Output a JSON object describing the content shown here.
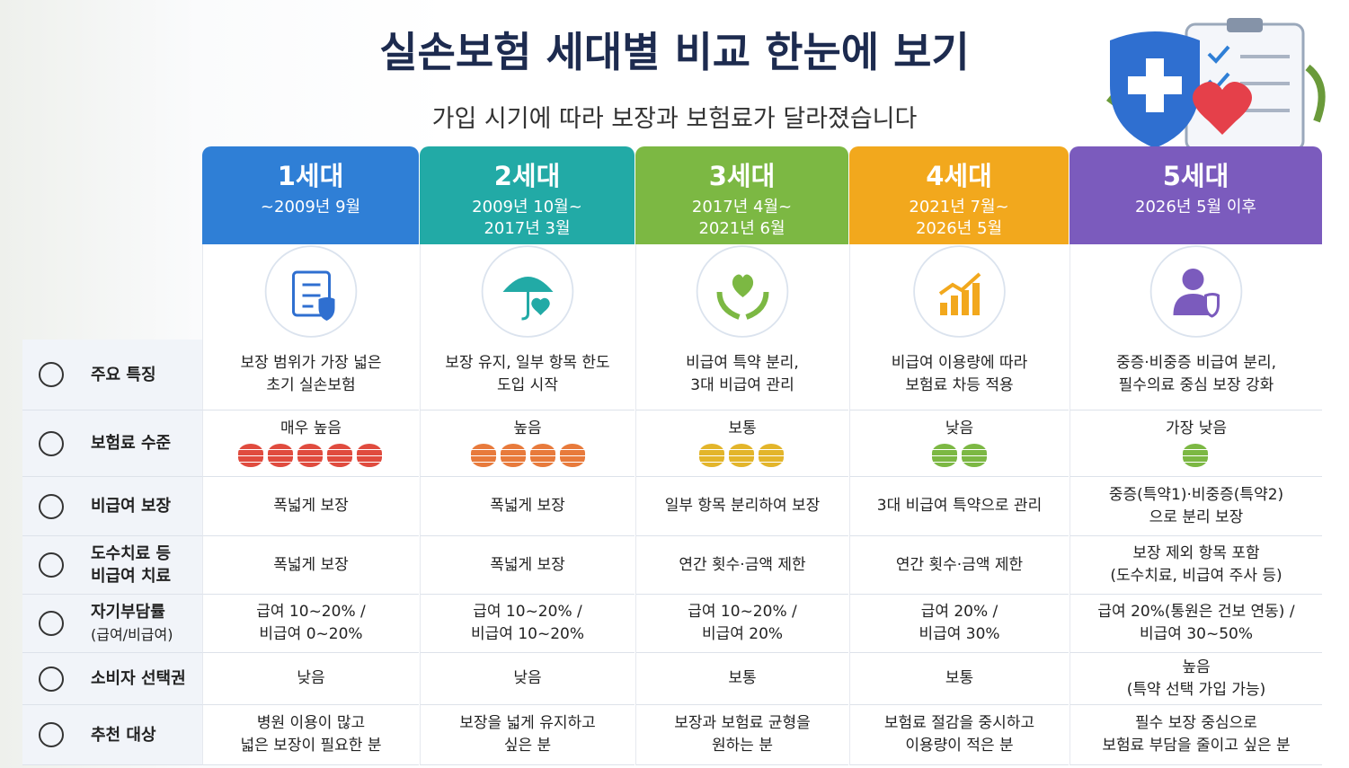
{
  "header": {
    "title": "실손보험 세대별 비교 한눈에 보기",
    "subtitle": "가입 시기에 따라 보장과 보험료가 달라졌습니다"
  },
  "columns": [
    {
      "name": "1세대",
      "period": "~2009년 9월"
    },
    {
      "name": "2세대",
      "period": "2009년 10월~\n2017년 3월"
    },
    {
      "name": "3세대",
      "period": "2017년 4월~\n2021년 6월"
    },
    {
      "name": "4세대",
      "period": "2021년 7월~\n2026년 5월"
    },
    {
      "name": "5세대",
      "period": "2026년 5월 이후"
    }
  ],
  "rows": [
    {
      "label": "주요 특징",
      "cells": [
        "보장 범위가 가장 넓은\n초기 실손보험",
        "보장 유지, 일부 항목 한도\n도입 시작",
        "비급여 특약 분리,\n3대 비급여 관리",
        "비급여 이용량에 따라\n보험료 차등 적용",
        "중증·비중증 비급여 분리,\n필수의료 중심 보장 강화"
      ]
    },
    {
      "label": "보험료 수준",
      "cells": [
        "매우 높음",
        "높음",
        "보통",
        "낮음",
        "가장 낮음"
      ]
    },
    {
      "label": "비급여 보장",
      "cells": [
        "폭넓게 보장",
        "폭넓게 보장",
        "일부 항목 분리하여 보장",
        "3대 비급여 특약으로 관리",
        "중증(특약1)·비중증(특약2)\n으로 분리 보장"
      ]
    },
    {
      "label": "도수치료 등\n비급여 치료",
      "cells": [
        "폭넓게 보장",
        "폭넓게 보장",
        "연간 횟수·금액 제한",
        "연간 횟수·금액 제한",
        "보장 제외 항목 포함\n(도수치료, 비급여 주사 등)"
      ]
    },
    {
      "label": "자기부담률",
      "sublabel": "(급여/비급여)",
      "cells": [
        "급여 10~20% /\n비급여 0~20%",
        "급여 10~20% /\n비급여 10~20%",
        "급여 10~20% /\n비급여 20%",
        "급여 20% /\n비급여 30%",
        "급여 20%(통원은 건보 연동) /\n비급여 30~50%"
      ]
    },
    {
      "label": "소비자 선택권",
      "cells": [
        "낮음",
        "낮음",
        "보통",
        "보통",
        "높음\n(특약 선택 가입 가능)"
      ]
    },
    {
      "label": "추천 대상",
      "cells": [
        "병원 이용이 많고\n넓은 보장이 필요한 분",
        "보장을 넓게 유지하고\n싶은 분",
        "보장과 보험료 균형을\n원하는 분",
        "보험료 절감을 중시하고\n이용량이 적은 분",
        "필수 보장 중심으로\n보험료 부담을 줄이고 싶은 분"
      ]
    }
  ]
}
